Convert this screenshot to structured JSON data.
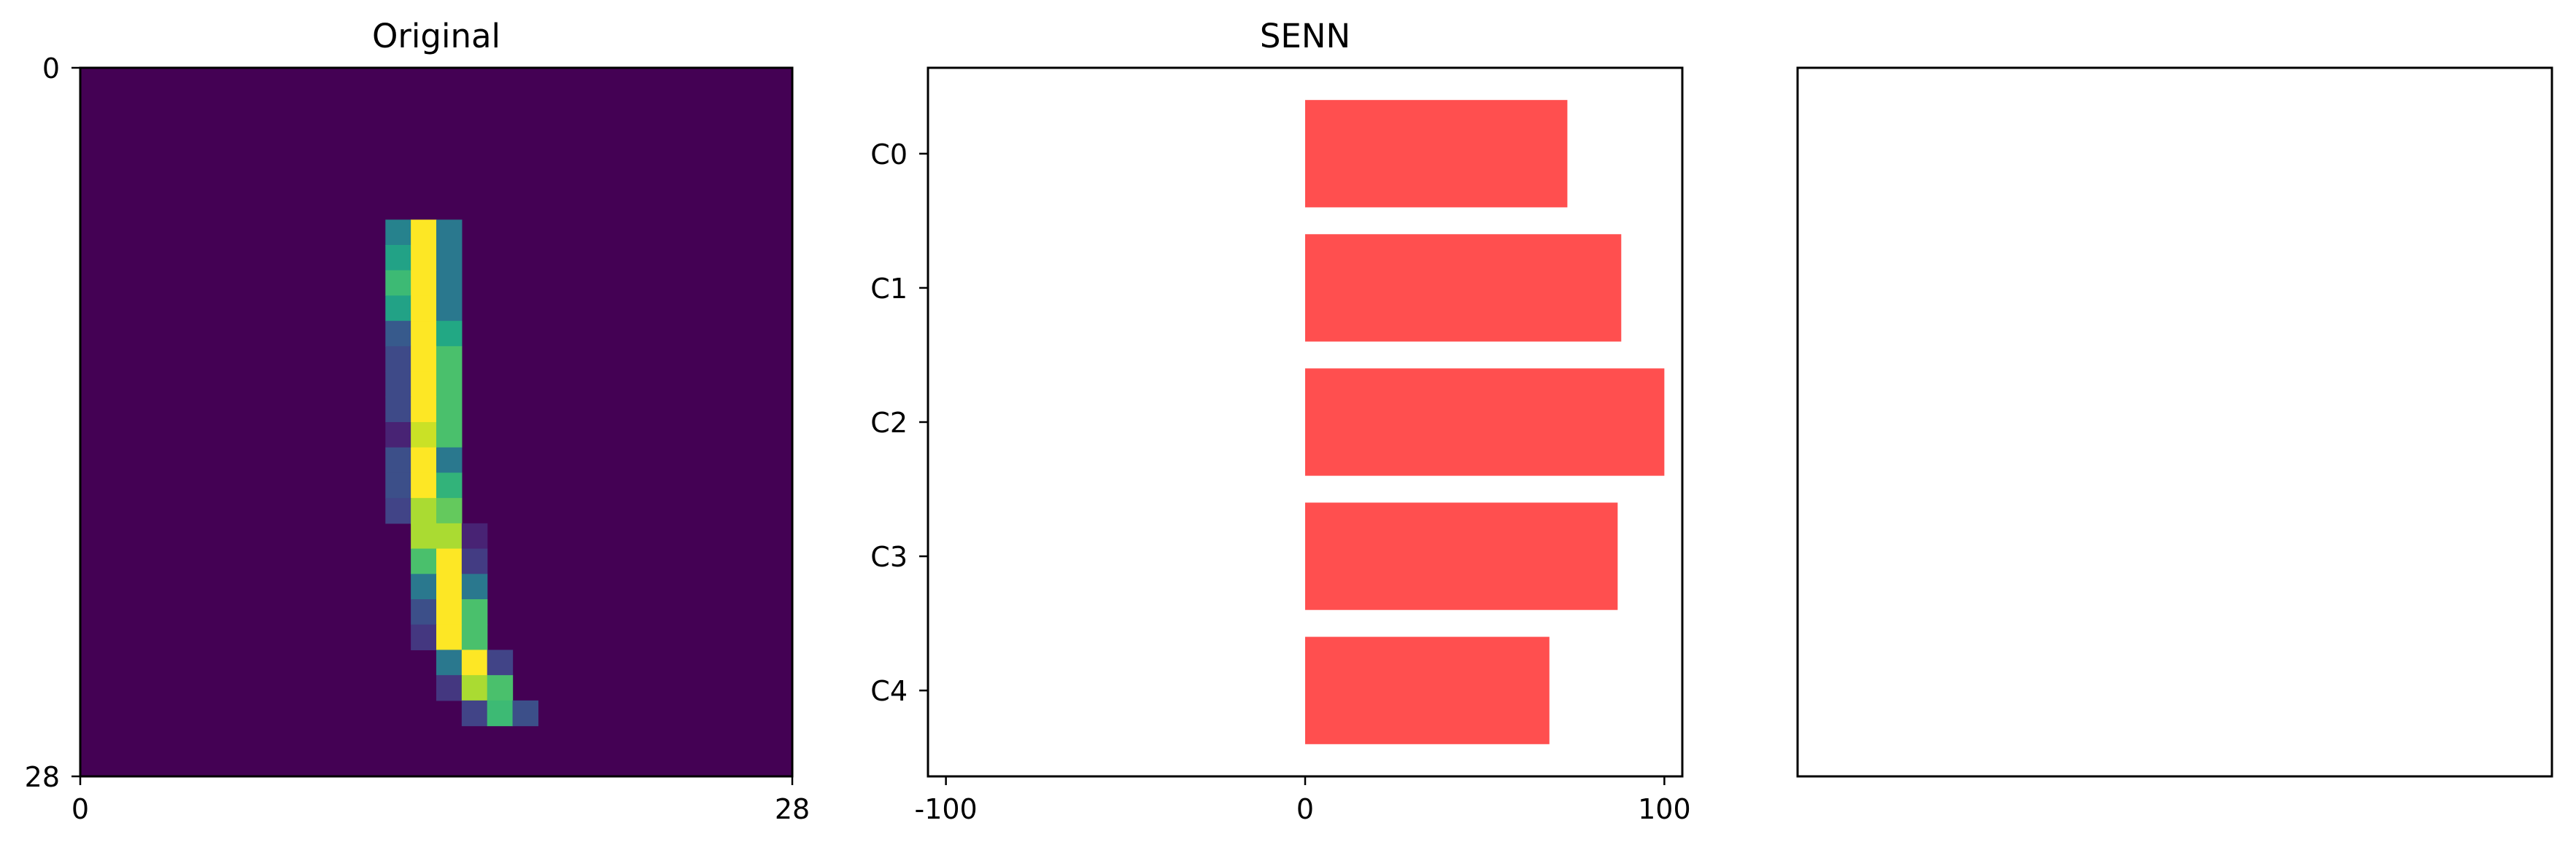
{
  "chart_data": [
    {
      "type": "heatmap",
      "title": "Original",
      "colormap": "viridis",
      "xlim": [
        0,
        28
      ],
      "ylim": [
        0,
        28
      ],
      "x_ticks": [
        "0",
        "28"
      ],
      "y_ticks": [
        "0",
        "28"
      ],
      "background_value": 0,
      "pixels": [
        [
          6,
          12,
          0.55
        ],
        [
          6,
          13,
          1.0
        ],
        [
          6,
          14,
          0.5
        ],
        [
          7,
          12,
          0.72
        ],
        [
          7,
          13,
          1.0
        ],
        [
          7,
          14,
          0.5
        ],
        [
          8,
          12,
          0.8
        ],
        [
          8,
          13,
          1.0
        ],
        [
          8,
          14,
          0.5
        ],
        [
          9,
          12,
          0.72
        ],
        [
          9,
          13,
          1.0
        ],
        [
          9,
          14,
          0.5
        ],
        [
          10,
          12,
          0.35
        ],
        [
          10,
          13,
          1.0
        ],
        [
          10,
          14,
          0.75
        ],
        [
          11,
          12,
          0.28
        ],
        [
          11,
          13,
          1.0
        ],
        [
          11,
          14,
          0.82
        ],
        [
          12,
          12,
          0.28
        ],
        [
          12,
          13,
          1.0
        ],
        [
          12,
          14,
          0.82
        ],
        [
          13,
          12,
          0.28
        ],
        [
          13,
          13,
          1.0
        ],
        [
          13,
          14,
          0.82
        ],
        [
          14,
          12,
          0.12
        ],
        [
          14,
          13,
          0.95
        ],
        [
          14,
          14,
          0.82
        ],
        [
          15,
          12,
          0.3
        ],
        [
          15,
          13,
          1.0
        ],
        [
          15,
          14,
          0.5
        ],
        [
          16,
          12,
          0.3
        ],
        [
          16,
          13,
          1.0
        ],
        [
          16,
          14,
          0.78
        ],
        [
          17,
          12,
          0.25
        ],
        [
          17,
          13,
          0.92
        ],
        [
          17,
          14,
          0.85
        ],
        [
          18,
          13,
          0.92
        ],
        [
          18,
          14,
          0.92
        ],
        [
          18,
          15,
          0.12
        ],
        [
          19,
          13,
          0.82
        ],
        [
          19,
          14,
          1.0
        ],
        [
          19,
          15,
          0.22
        ],
        [
          20,
          13,
          0.5
        ],
        [
          20,
          14,
          1.0
        ],
        [
          20,
          15,
          0.5
        ],
        [
          21,
          13,
          0.3
        ],
        [
          21,
          14,
          1.0
        ],
        [
          21,
          15,
          0.82
        ],
        [
          22,
          13,
          0.2
        ],
        [
          22,
          14,
          1.0
        ],
        [
          22,
          15,
          0.82
        ],
        [
          23,
          14,
          0.5
        ],
        [
          23,
          15,
          1.0
        ],
        [
          23,
          16,
          0.25
        ],
        [
          24,
          14,
          0.2
        ],
        [
          24,
          15,
          0.92
        ],
        [
          24,
          16,
          0.82
        ],
        [
          25,
          15,
          0.25
        ],
        [
          25,
          16,
          0.8
        ],
        [
          25,
          17,
          0.3
        ]
      ]
    },
    {
      "type": "bar",
      "orientation": "horizontal",
      "title": "SENN",
      "categories": [
        "C0",
        "C1",
        "C2",
        "C3",
        "C4"
      ],
      "values": [
        73,
        88,
        100,
        87,
        68
      ],
      "xlim": [
        -105,
        105
      ],
      "x_ticks": [
        -100,
        0,
        100
      ],
      "bar_color": "#ff4f4f"
    },
    {
      "type": "bar",
      "title": "",
      "empty": true
    }
  ]
}
